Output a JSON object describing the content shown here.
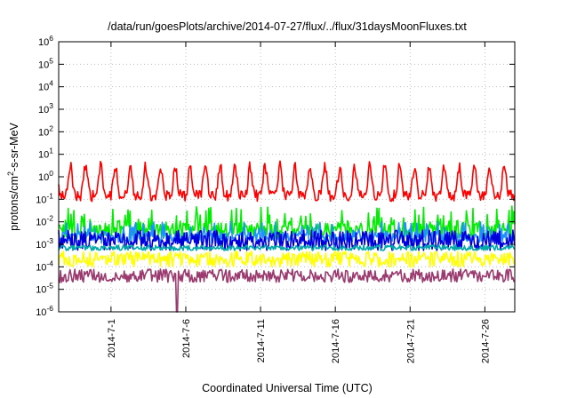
{
  "chart_data": {
    "type": "line",
    "title": "/data/run/goesPlots/archive/2014-07-27/flux/../flux/31daysMoonFluxes.txt",
    "xlabel": "Coordinated Universal Time (UTC)",
    "ylabel_parts": {
      "base": "protons/cm",
      "sup": "2",
      "rest": "-s-sr-MeV"
    },
    "y_scale": "log",
    "ylim": [
      1e-06,
      1000000.0
    ],
    "y_ticks": [
      {
        "value": 1000000.0,
        "base": "10",
        "exp": "6"
      },
      {
        "value": 100000.0,
        "base": "10",
        "exp": "5"
      },
      {
        "value": 10000.0,
        "base": "10",
        "exp": "4"
      },
      {
        "value": 1000.0,
        "base": "10",
        "exp": "3"
      },
      {
        "value": 100.0,
        "base": "10",
        "exp": "2"
      },
      {
        "value": 10.0,
        "base": "10",
        "exp": "1"
      },
      {
        "value": 1.0,
        "base": "10",
        "exp": "0"
      },
      {
        "value": 0.1,
        "base": "10",
        "exp": "-1"
      },
      {
        "value": 0.01,
        "base": "10",
        "exp": "-2"
      },
      {
        "value": 0.001,
        "base": "10",
        "exp": "-3"
      },
      {
        "value": 0.0001,
        "base": "10",
        "exp": "-4"
      },
      {
        "value": 1e-05,
        "base": "10",
        "exp": "-5"
      },
      {
        "value": 1e-06,
        "base": "10",
        "exp": "-6"
      }
    ],
    "xlim": [
      "2014-06-27T12:00",
      "2014-07-28T00:00"
    ],
    "x_ticks": [
      {
        "value": "2014-07-01",
        "label": "2014-7-1"
      },
      {
        "value": "2014-07-06",
        "label": "2014-7-6"
      },
      {
        "value": "2014-07-11",
        "label": "2014-7-11"
      },
      {
        "value": "2014-07-16",
        "label": "2014-7-16"
      },
      {
        "value": "2014-07-21",
        "label": "2014-7-21"
      },
      {
        "value": "2014-07-26",
        "label": "2014-7-26"
      }
    ],
    "grid": true,
    "series": [
      {
        "color": "#ff0000",
        "style": "diurnal",
        "base": 0.55,
        "amp": 1.3,
        "noise": 0.25,
        "period_days": 1,
        "phase": 0.2
      },
      {
        "color": "#00ee00",
        "style": "spiky",
        "base": 0.004,
        "spike_max": 0.05,
        "noise": 0.35
      },
      {
        "color": "#1e90ff",
        "style": "spiky",
        "base": 0.002,
        "spike_max": 0.01,
        "noise": 0.25
      },
      {
        "color": "#0000dd",
        "style": "band",
        "base": 0.0015,
        "noise": 0.45
      },
      {
        "color": "#00a8a8",
        "style": "band",
        "base": 0.0007,
        "noise": 0.12
      },
      {
        "color": "#ffff00",
        "style": "band",
        "base": 0.00022,
        "noise": 0.35
      },
      {
        "color": "#9b3a6e",
        "style": "band",
        "base": 4e-05,
        "noise": 0.3,
        "dip": {
          "date": "2014-07-05T10:00",
          "value": 1e-06
        }
      }
    ]
  }
}
